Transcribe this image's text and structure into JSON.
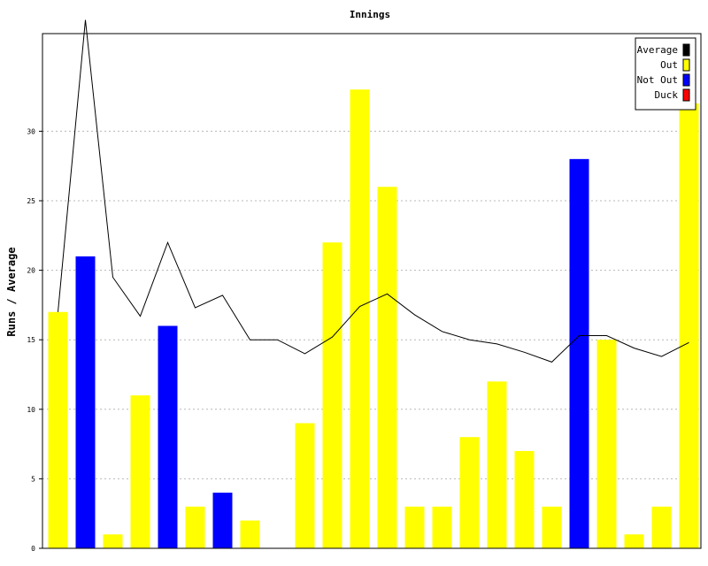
{
  "chart_data": {
    "type": "bar",
    "title": "Innings",
    "xlabel": "",
    "ylabel": "Runs / Average",
    "ylim": [
      0,
      37
    ],
    "yticks": [
      0,
      5,
      10,
      15,
      20,
      25,
      30
    ],
    "grid": true,
    "legend_position": "top-right",
    "legend": [
      {
        "name": "Average",
        "color": "#000000"
      },
      {
        "name": "Out",
        "color": "#ffff00"
      },
      {
        "name": "Not Out",
        "color": "#0000ff"
      },
      {
        "name": "Duck",
        "color": "#ff0000"
      }
    ],
    "innings": [
      {
        "runs": 17,
        "status": "Out"
      },
      {
        "runs": 21,
        "status": "Not Out"
      },
      {
        "runs": 1,
        "status": "Out"
      },
      {
        "runs": 11,
        "status": "Out"
      },
      {
        "runs": 16,
        "status": "Not Out"
      },
      {
        "runs": 3,
        "status": "Out"
      },
      {
        "runs": 4,
        "status": "Not Out"
      },
      {
        "runs": 2,
        "status": "Out"
      },
      {
        "runs": 0,
        "status": "Duck"
      },
      {
        "runs": 9,
        "status": "Out"
      },
      {
        "runs": 22,
        "status": "Out"
      },
      {
        "runs": 33,
        "status": "Out"
      },
      {
        "runs": 26,
        "status": "Out"
      },
      {
        "runs": 3,
        "status": "Out"
      },
      {
        "runs": 3,
        "status": "Out"
      },
      {
        "runs": 8,
        "status": "Out"
      },
      {
        "runs": 12,
        "status": "Out"
      },
      {
        "runs": 7,
        "status": "Out"
      },
      {
        "runs": 3,
        "status": "Out"
      },
      {
        "runs": 28,
        "status": "Not Out"
      },
      {
        "runs": 15,
        "status": "Out"
      },
      {
        "runs": 1,
        "status": "Out"
      },
      {
        "runs": 3,
        "status": "Out"
      },
      {
        "runs": 32,
        "status": "Out"
      }
    ],
    "average": [
      17,
      38,
      19.5,
      16.7,
      22,
      17.3,
      18.2,
      15,
      15,
      14,
      15.2,
      17.4,
      18.3,
      16.8,
      15.6,
      15,
      14.7,
      14.1,
      13.4,
      15.3,
      15.3,
      14.4,
      13.8,
      14.8
    ]
  }
}
